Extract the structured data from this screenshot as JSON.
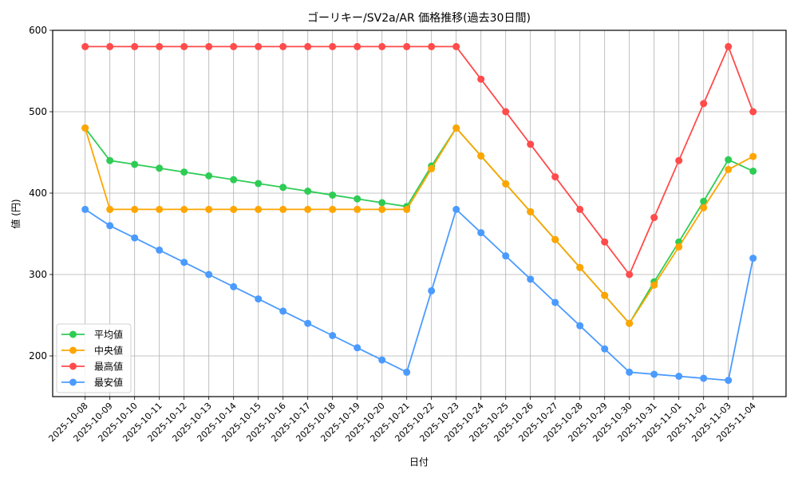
{
  "chart_data": {
    "type": "line",
    "title": "ゴーリキー/SV2a/AR 価格推移(過去30日間)",
    "xlabel": "日付",
    "ylabel": "値 (円)",
    "ylim": [
      150,
      600
    ],
    "yticks": [
      200,
      300,
      400,
      500,
      600
    ],
    "grid": true,
    "legend_position": "lower left",
    "categories": [
      "2025-10-08",
      "2025-10-09",
      "2025-10-10",
      "2025-10-11",
      "2025-10-12",
      "2025-10-13",
      "2025-10-14",
      "2025-10-15",
      "2025-10-16",
      "2025-10-17",
      "2025-10-18",
      "2025-10-19",
      "2025-10-20",
      "2025-10-21",
      "2025-10-22",
      "2025-10-23",
      "2025-10-24",
      "2025-10-25",
      "2025-10-26",
      "2025-10-27",
      "2025-10-28",
      "2025-10-29",
      "2025-10-30",
      "2025-10-31",
      "2025-11-01",
      "2025-11-02",
      "2025-11-03",
      "2025-11-04"
    ],
    "series": [
      {
        "name": "平均値",
        "color": "#2ecc55",
        "values": [
          480,
          440,
          435.3,
          430.6,
          425.9,
          421.2,
          416.5,
          411.8,
          407.1,
          402.4,
          397.6,
          392.9,
          388.2,
          383.5,
          433.3,
          480,
          445.7,
          411.4,
          377.1,
          342.9,
          308.6,
          274.3,
          240,
          291,
          340,
          390,
          441,
          427
        ]
      },
      {
        "name": "中央値",
        "color": "#ffa500",
        "values": [
          480,
          380,
          380,
          380,
          380,
          380,
          380,
          380,
          380,
          380,
          380,
          380,
          380,
          380,
          430,
          480,
          445.7,
          411.4,
          377.1,
          342.9,
          308.6,
          274.3,
          240,
          287,
          334,
          382,
          429,
          445
        ]
      },
      {
        "name": "最高値",
        "color": "#ff4b4b",
        "values": [
          580,
          580,
          580,
          580,
          580,
          580,
          580,
          580,
          580,
          580,
          580,
          580,
          580,
          580,
          580,
          580,
          540,
          500,
          460,
          420,
          380,
          340,
          300,
          370,
          440,
          510,
          580,
          500
        ]
      },
      {
        "name": "最安値",
        "color": "#4b9bff",
        "values": [
          380,
          360,
          345,
          330,
          315,
          300,
          285,
          270,
          255,
          240,
          225,
          210,
          195,
          180,
          280,
          380,
          351.4,
          322.9,
          294.3,
          265.7,
          237.1,
          208.6,
          180,
          177.5,
          175,
          172.5,
          170,
          320
        ]
      }
    ]
  }
}
